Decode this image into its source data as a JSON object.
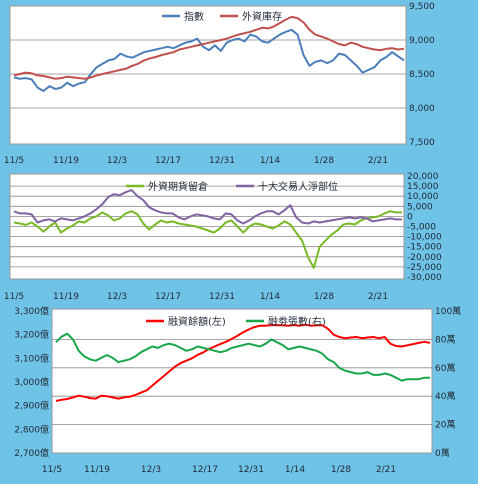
{
  "chart_data": [
    {
      "type": "line",
      "x_ticks": [
        "11/5",
        "11/19",
        "12/3",
        "12/17",
        "12/31",
        "1/14",
        "1/28",
        "2/21"
      ],
      "ylim": [
        7500,
        9500
      ],
      "y_ticks": [
        "9,500",
        "9,000",
        "8,500",
        "8,000",
        "7,500"
      ],
      "grid": true,
      "legend_position": "top",
      "series": [
        {
          "name": "指數",
          "axis": "right",
          "color": "#4a7ebb",
          "values": [
            8450,
            8430,
            8440,
            8420,
            8300,
            8250,
            8320,
            8280,
            8300,
            8370,
            8320,
            8360,
            8380,
            8500,
            8600,
            8650,
            8700,
            8720,
            8800,
            8760,
            8740,
            8780,
            8820,
            8840,
            8860,
            8880,
            8900,
            8880,
            8920,
            8960,
            8980,
            9020,
            8900,
            8850,
            8920,
            8840,
            8960,
            9000,
            9020,
            8980,
            9080,
            9050,
            8980,
            8960,
            9020,
            9080,
            9120,
            9150,
            9080,
            8780,
            8620,
            8680,
            8700,
            8660,
            8700,
            8800,
            8780,
            8700,
            8620,
            8520,
            8560,
            8600,
            8700,
            8750,
            8820,
            8760,
            8700
          ]
        },
        {
          "name": "外資庫存",
          "axis": "right",
          "color": "#c0504d",
          "values": [
            8480,
            8500,
            8520,
            8510,
            8480,
            8470,
            8450,
            8430,
            8440,
            8460,
            8450,
            8440,
            8430,
            8450,
            8480,
            8500,
            8520,
            8540,
            8560,
            8580,
            8620,
            8650,
            8700,
            8730,
            8750,
            8780,
            8800,
            8820,
            8860,
            8880,
            8900,
            8920,
            8940,
            8960,
            8980,
            9000,
            9020,
            9050,
            9080,
            9100,
            9120,
            9150,
            9180,
            9170,
            9200,
            9250,
            9300,
            9340,
            9320,
            9260,
            9150,
            9080,
            9050,
            9020,
            8980,
            8940,
            8920,
            8960,
            8940,
            8900,
            8880,
            8860,
            8850,
            8870,
            8880,
            8860,
            8870
          ]
        }
      ]
    },
    {
      "type": "line",
      "x_ticks": [
        "11/5",
        "11/19",
        "12/3",
        "12/17",
        "12/31",
        "1/14",
        "1/28",
        "2/21"
      ],
      "ylim": [
        -30000,
        20000
      ],
      "y_ticks": [
        "20,000",
        "15,000",
        "10,000",
        "5,000",
        "0",
        "-5,000",
        "-10,000",
        "-15,000",
        "-20,000",
        "-25,000",
        "-30,000"
      ],
      "grid": true,
      "legend_position": "top",
      "series": [
        {
          "name": "外資期貨留倉",
          "axis": "right",
          "color": "#79b928",
          "values": [
            -3000,
            -3500,
            -4200,
            -3000,
            -5000,
            -7500,
            -5000,
            -3000,
            -8000,
            -6000,
            -4500,
            -2500,
            -3000,
            -1000,
            0,
            2000,
            500,
            -2000,
            -1000,
            1500,
            2500,
            1000,
            -3500,
            -6500,
            -4000,
            -2000,
            -3000,
            -2500,
            -3500,
            -4000,
            -4500,
            -5000,
            -6000,
            -7000,
            -8000,
            -6000,
            -3000,
            -2000,
            -5000,
            -8000,
            -5000,
            -3500,
            -4000,
            -5000,
            -6000,
            -4500,
            -2500,
            -4000,
            -8000,
            -12000,
            -20000,
            -25500,
            -15000,
            -12000,
            -9000,
            -7000,
            -4000,
            -3500,
            -4000,
            -2000,
            -1000,
            -500,
            0,
            1500,
            2500,
            2000,
            2000
          ]
        },
        {
          "name": "十大交易人淨部位",
          "axis": "right",
          "color": "#8064a2",
          "values": [
            2500,
            1500,
            1500,
            1000,
            -3000,
            -2000,
            -1500,
            -2500,
            -1000,
            -1500,
            -2000,
            -1000,
            0,
            1500,
            3500,
            6000,
            9500,
            11000,
            10500,
            12000,
            13000,
            10000,
            8000,
            4500,
            3000,
            2000,
            1500,
            1500,
            -500,
            -1500,
            0,
            1000,
            500,
            0,
            -1000,
            -1500,
            1500,
            1000,
            -2000,
            -3500,
            -2000,
            0,
            1500,
            2500,
            2500,
            1000,
            3000,
            5500,
            -500,
            -3000,
            -3500,
            -2500,
            -3000,
            -2500,
            -2000,
            -1500,
            -1000,
            -500,
            -1000,
            -500,
            -1000,
            -2500,
            -2000,
            -1500,
            -1000,
            -1500,
            -1500
          ]
        }
      ]
    },
    {
      "type": "line",
      "x_ticks": [
        "11/5",
        "11/19",
        "12/3",
        "12/17",
        "12/31",
        "1/14",
        "1/28",
        "2/21"
      ],
      "ylim_left": [
        2700,
        3300
      ],
      "ylim_right": [
        0,
        100
      ],
      "y_ticks_left": [
        "3,300億",
        "3,200億",
        "3,100億",
        "3,000億",
        "2,900億",
        "2,800億",
        "2,700億"
      ],
      "y_ticks_right": [
        "100萬",
        "80萬",
        "60萬",
        "40萬",
        "20萬",
        "0萬"
      ],
      "grid": true,
      "legend_position": "top",
      "series": [
        {
          "name": "融資餘額(左)",
          "axis": "left",
          "color": "#ff0000",
          "values": [
            2920,
            2925,
            2928,
            2935,
            2942,
            2938,
            2932,
            2930,
            2942,
            2940,
            2935,
            2930,
            2935,
            2938,
            2945,
            2955,
            2965,
            2985,
            3005,
            3025,
            3045,
            3065,
            3080,
            3090,
            3100,
            3115,
            3125,
            3140,
            3150,
            3160,
            3170,
            3182,
            3195,
            3210,
            3222,
            3232,
            3238,
            3238,
            3241,
            3240,
            3240,
            3238,
            3241,
            3238,
            3242,
            3238,
            3240,
            3240,
            3225,
            3200,
            3190,
            3185,
            3188,
            3190,
            3185,
            3188,
            3190,
            3185,
            3190,
            3162,
            3152,
            3150,
            3155,
            3160,
            3165,
            3170,
            3165
          ]
        },
        {
          "name": "融劵張數(右)",
          "axis": "right",
          "color": "#19a64b",
          "values": [
            78,
            82,
            84,
            80,
            72,
            68,
            66,
            65,
            67,
            69,
            67,
            64,
            65,
            66,
            68,
            71,
            73,
            75,
            74,
            76,
            77,
            76,
            74,
            72,
            73,
            75,
            74,
            73,
            72,
            71,
            72,
            74,
            75,
            76,
            77,
            76,
            75,
            77,
            80,
            78,
            76,
            73,
            74,
            75,
            74,
            73,
            72,
            70,
            66,
            64,
            60,
            58,
            57,
            56,
            56,
            57,
            55,
            55,
            56,
            55,
            53,
            51,
            52,
            52,
            52,
            53,
            53
          ]
        }
      ]
    }
  ]
}
